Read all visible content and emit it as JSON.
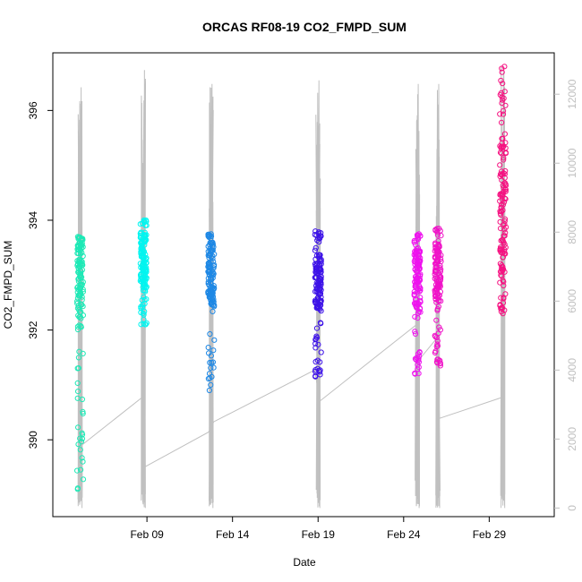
{
  "chart_data": {
    "type": "scatter",
    "title": "ORCAS RF08-19 CO2_FMPD_SUM",
    "xlabel": "Date",
    "ylabel": "CO2_FMPD_SUM",
    "x_ticks": [
      "Feb 09",
      "Feb 14",
      "Feb 19",
      "Feb 24",
      "Feb 29"
    ],
    "y_ticks": [
      "390",
      "392",
      "394",
      "396"
    ],
    "y2_ticks": [
      "0",
      "2000",
      "4000",
      "6000",
      "8000",
      "10000",
      "12000"
    ],
    "xlim": [
      3.5,
      32.8
    ],
    "ylim": [
      388.6,
      397.05
    ],
    "y2lim": [
      -250,
      13200
    ],
    "grid": false,
    "legend": "none",
    "colors": {
      "axis": "#000000",
      "secondary_axis": "#c0c0c0",
      "altitude_line": "#c0c0c0"
    },
    "flights": [
      {
        "day": 5.1,
        "ymin": 389.1,
        "ymax": 393.7,
        "core_min": 392.2,
        "core_max": 393.6,
        "color": "#1de9b6",
        "alt_max": 12200
      },
      {
        "day": 8.8,
        "ymin": 392.1,
        "ymax": 394.0,
        "core_min": 392.7,
        "core_max": 393.8,
        "color": "#00f5f0",
        "alt_max": 12700
      },
      {
        "day": 12.75,
        "ymin": 390.9,
        "ymax": 393.75,
        "core_min": 392.4,
        "core_max": 393.6,
        "color": "#1e88e5",
        "alt_max": 12300
      },
      {
        "day": 19.0,
        "ymin": 391.15,
        "ymax": 393.8,
        "core_min": 392.4,
        "core_max": 393.4,
        "color": "#3d12e8",
        "alt_max": 12400
      },
      {
        "day": 24.8,
        "ymin": 391.2,
        "ymax": 393.75,
        "core_min": 392.3,
        "core_max": 393.5,
        "color": "#ee12ee",
        "alt_max": 12300
      },
      {
        "day": 26.0,
        "ymin": 391.35,
        "ymax": 393.85,
        "core_min": 392.5,
        "core_max": 393.6,
        "color": "#f012c8",
        "alt_max": 12300
      },
      {
        "day": 29.8,
        "ymin": 392.3,
        "ymax": 396.8,
        "core_min": 392.8,
        "core_max": 395.5,
        "color": "#f51281",
        "alt_max": 12800
      }
    ],
    "altitude_trend": [
      {
        "x": 5.0,
        "y": 1750
      },
      {
        "x": 8.7,
        "y": 3200
      },
      {
        "x": 8.9,
        "y": 1200
      },
      {
        "x": 12.6,
        "y": 2200
      },
      {
        "x": 12.9,
        "y": 2500
      },
      {
        "x": 18.8,
        "y": 4000
      },
      {
        "x": 19.1,
        "y": 3100
      },
      {
        "x": 24.7,
        "y": 5300
      },
      {
        "x": 24.9,
        "y": 4300
      },
      {
        "x": 25.9,
        "y": 4900
      },
      {
        "x": 26.1,
        "y": 2600
      },
      {
        "x": 29.7,
        "y": 3200
      }
    ]
  }
}
